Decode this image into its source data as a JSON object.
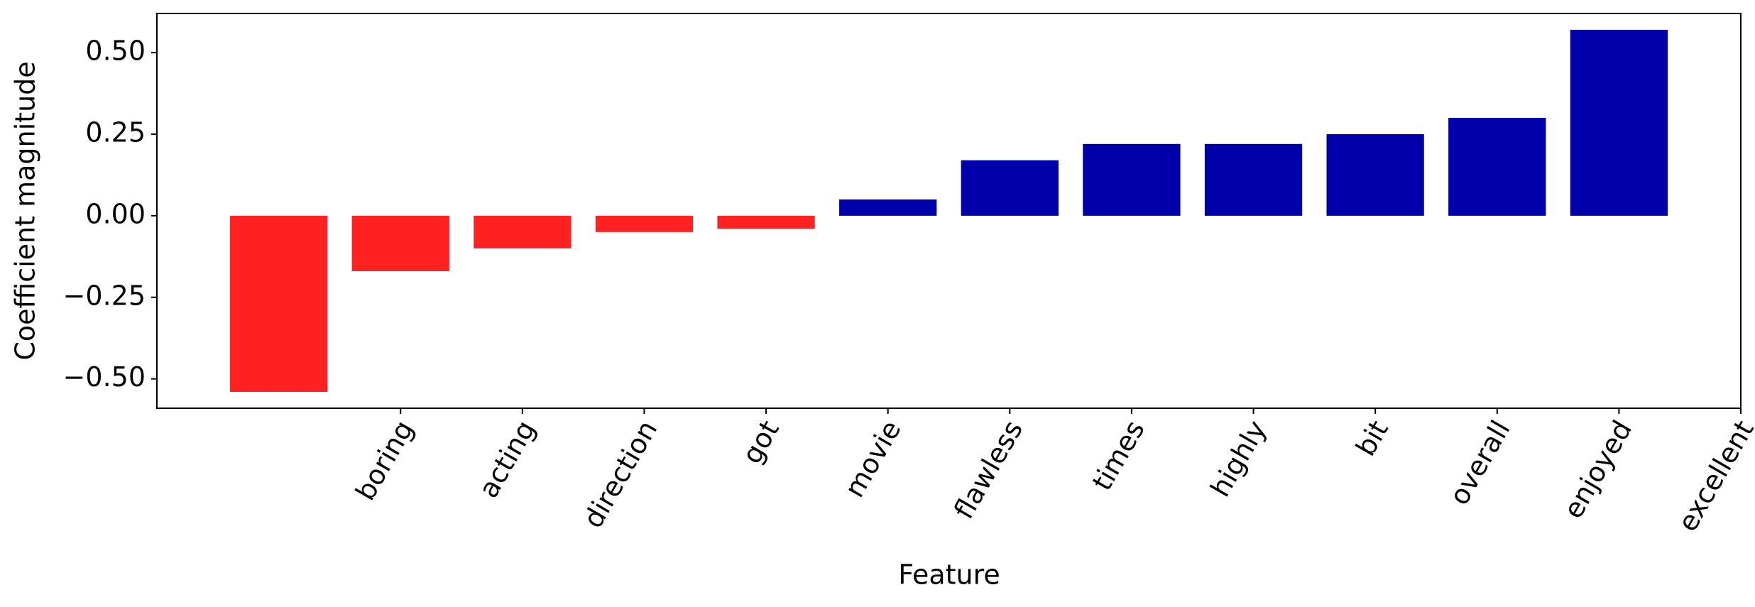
{
  "chart_data": {
    "type": "bar",
    "x_label": "Feature",
    "y_label": "Coefficient magnitude",
    "x": [
      0,
      1,
      2,
      3,
      4,
      5,
      6,
      7,
      8,
      9,
      10,
      11
    ],
    "values": [
      -0.54,
      -0.17,
      -0.1,
      -0.05,
      -0.04,
      0.05,
      0.17,
      0.22,
      0.22,
      0.25,
      0.3,
      0.57
    ],
    "colors": [
      "#ff2222",
      "#ff2222",
      "#ff2222",
      "#ff2222",
      "#ff2222",
      "#0000aa",
      "#0000aa",
      "#0000aa",
      "#0000aa",
      "#0000aa",
      "#0000aa",
      "#0000aa"
    ],
    "xlim": [
      -1,
      12
    ],
    "xticks": [
      {
        "value": 1,
        "label": "boring"
      },
      {
        "value": 2,
        "label": "acting"
      },
      {
        "value": 3,
        "label": "direction"
      },
      {
        "value": 4,
        "label": "got"
      },
      {
        "value": 5,
        "label": "movie"
      },
      {
        "value": 6,
        "label": "flawless"
      },
      {
        "value": 7,
        "label": "times"
      },
      {
        "value": 8,
        "label": "highly"
      },
      {
        "value": 9,
        "label": "bit"
      },
      {
        "value": 10,
        "label": "overall"
      },
      {
        "value": 11,
        "label": "enjoyed"
      },
      {
        "value": 12,
        "label": "excellent"
      }
    ],
    "ylim": [
      -0.59,
      0.62
    ],
    "yticks": [
      {
        "value": -0.5,
        "label": "−0.50"
      },
      {
        "value": -0.25,
        "label": "−0.25"
      },
      {
        "value": 0,
        "label": "0.00"
      },
      {
        "value": 0.25,
        "label": "0.25"
      },
      {
        "value": 0.5,
        "label": "0.50"
      }
    ]
  }
}
